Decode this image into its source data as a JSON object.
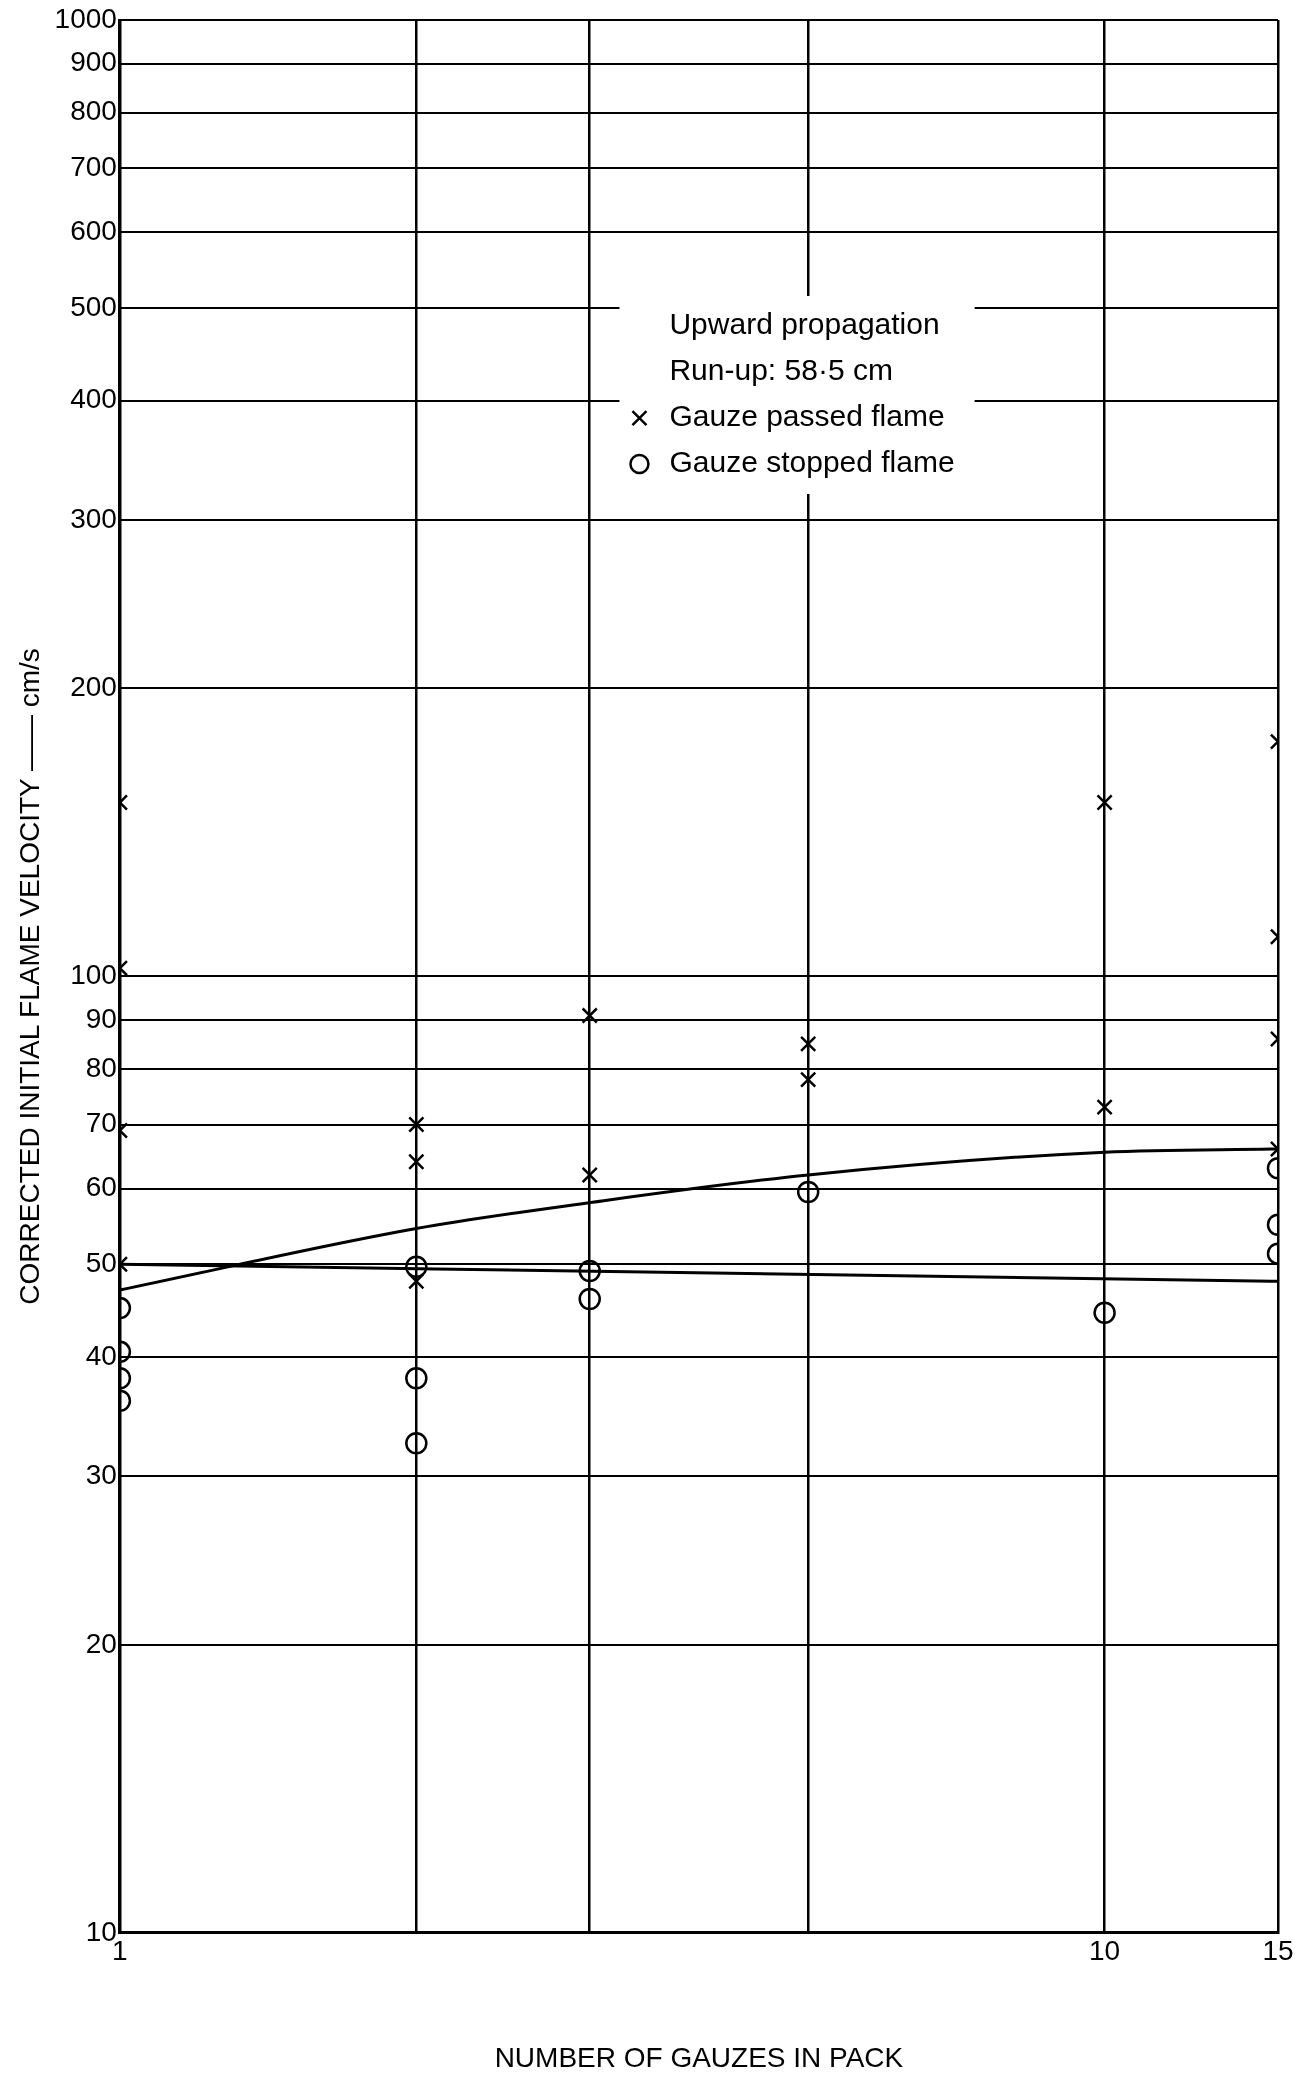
{
  "chart_data": {
    "type": "scatter",
    "xlabel": "NUMBER OF GAUZES IN PACK",
    "ylabel": "CORRECTED INITIAL FLAME VELOCITY —— cm/s",
    "log": "xy",
    "grid": true,
    "legend": "top right",
    "xlim": [
      1,
      15
    ],
    "xticks": [
      1,
      {
        "value": 2,
        "label": null
      },
      {
        "value": 3,
        "label": null
      },
      {
        "value": 5,
        "label": null
      },
      10,
      15
    ],
    "ylim": [
      10,
      1000
    ],
    "yticks": [
      10,
      20,
      30,
      40,
      50,
      60,
      70,
      80,
      90,
      100,
      200,
      300,
      400,
      500,
      600,
      700,
      800,
      900,
      1000
    ],
    "annotations": [
      "Upward propagation",
      "Run-up: 58·5 cm"
    ],
    "series": [
      {
        "name": "Gauze passed flame",
        "type": "scatter",
        "marker": "cross",
        "color": "#000000",
        "x": [
          1,
          1,
          1,
          1,
          2,
          2,
          2,
          3,
          3,
          5,
          5,
          10,
          10,
          15,
          15,
          15,
          15
        ],
        "values": [
          152,
          102,
          69,
          50,
          70,
          64,
          48,
          91,
          62,
          85,
          78,
          152,
          73,
          176,
          110,
          86,
          66
        ]
      },
      {
        "name": "Gauze stopped flame",
        "type": "scatter",
        "marker": "circle",
        "color": "#000000",
        "x": [
          1,
          1,
          1,
          1,
          2,
          2,
          2,
          3,
          3,
          5,
          10,
          15,
          15,
          15
        ],
        "values": [
          45,
          40.5,
          38,
          36,
          49.7,
          38,
          32.5,
          49.2,
          46,
          59.5,
          44.5,
          63,
          55,
          51.3
        ]
      },
      {
        "type": "line",
        "marker": "none",
        "line_style": "solid",
        "color": "#000000",
        "x": [
          1,
          2,
          3,
          5,
          10,
          15
        ],
        "values": [
          47,
          54.5,
          58,
          62,
          65.5,
          66
        ]
      },
      {
        "type": "line",
        "marker": "none",
        "line_style": "solid",
        "color": "#000000",
        "x": [
          1,
          15
        ],
        "values": [
          50,
          48
        ]
      }
    ]
  }
}
